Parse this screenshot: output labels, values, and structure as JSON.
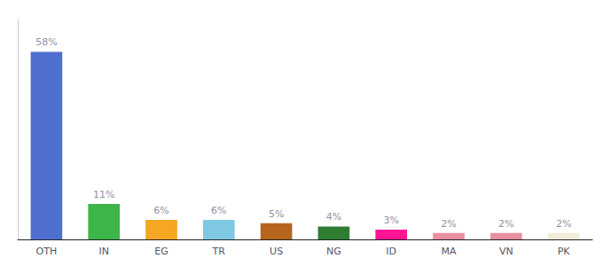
{
  "chart_data": {
    "type": "bar",
    "categories": [
      "OTH",
      "IN",
      "EG",
      "TR",
      "US",
      "NG",
      "ID",
      "MA",
      "VN",
      "PK"
    ],
    "values": [
      58,
      11,
      6,
      6,
      5,
      4,
      3,
      2,
      2,
      2
    ],
    "value_labels": [
      "58%",
      "11%",
      "6%",
      "6%",
      "5%",
      "4%",
      "3%",
      "2%",
      "2%",
      "2%"
    ],
    "colors": [
      "#4f6fd0",
      "#3cb54a",
      "#f5a623",
      "#7ec8e3",
      "#b5651d",
      "#2e7d32",
      "#ff1493",
      "#e88fa0",
      "#e88fa0",
      "#f0ecd8"
    ],
    "ylim": [
      0,
      68
    ],
    "grid": false,
    "data_labels": true,
    "tick_labels": "x"
  }
}
